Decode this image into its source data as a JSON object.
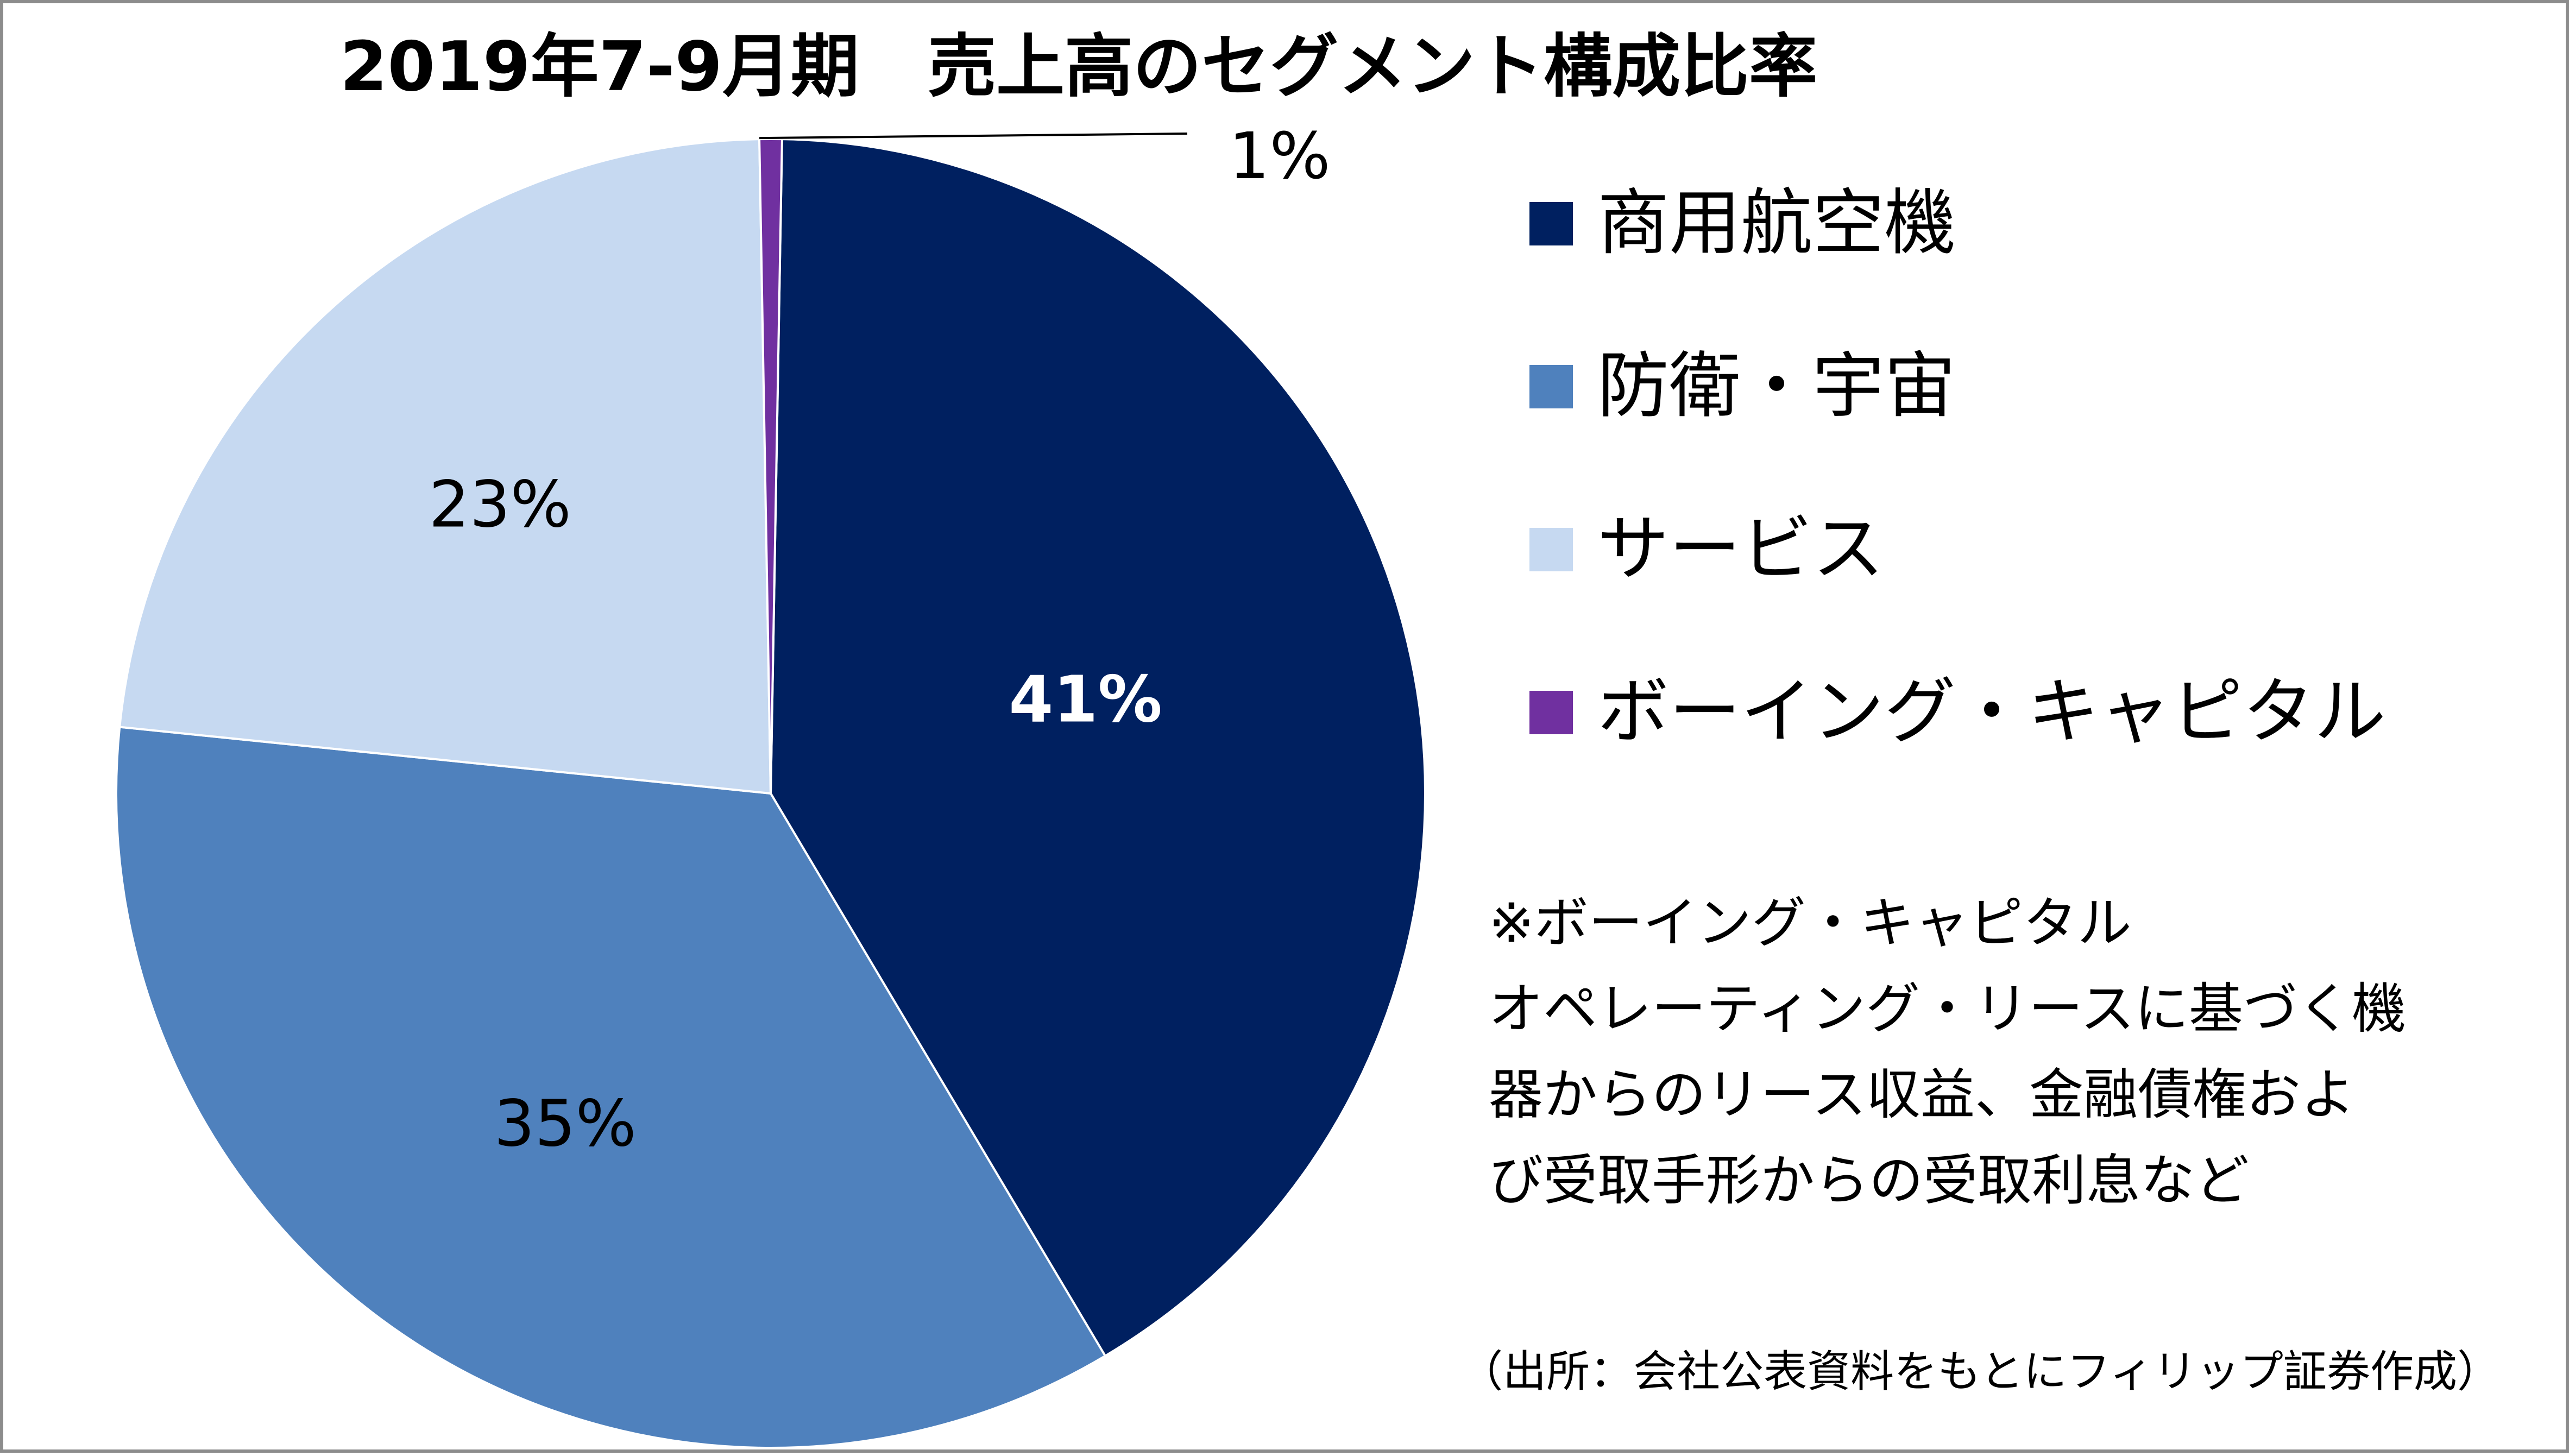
{
  "chart_data": {
    "type": "pie",
    "title": "2019年7-9月期　売上高のセグメント構成比率",
    "categories": [
      "商用航空機",
      "防衛・宇宙",
      "サービス",
      "ボーイング・キャピタル"
    ],
    "values": [
      41,
      35,
      23,
      1
    ],
    "value_labels": [
      "41%",
      "35%",
      "23%",
      "1%"
    ],
    "colors": [
      "#002060",
      "#4f81bd",
      "#c6d9f1",
      "#7030a0"
    ],
    "legend_position": "right"
  },
  "footnote": {
    "lines": [
      "※ボーイング・キャピタル",
      "オペレーティング・リースに基づく機",
      "器からのリース収益、金融債権およ",
      "び受取手形からの受取利息など"
    ]
  },
  "source": "（出所：会社公表資料をもとにフィリップ証券作成）"
}
